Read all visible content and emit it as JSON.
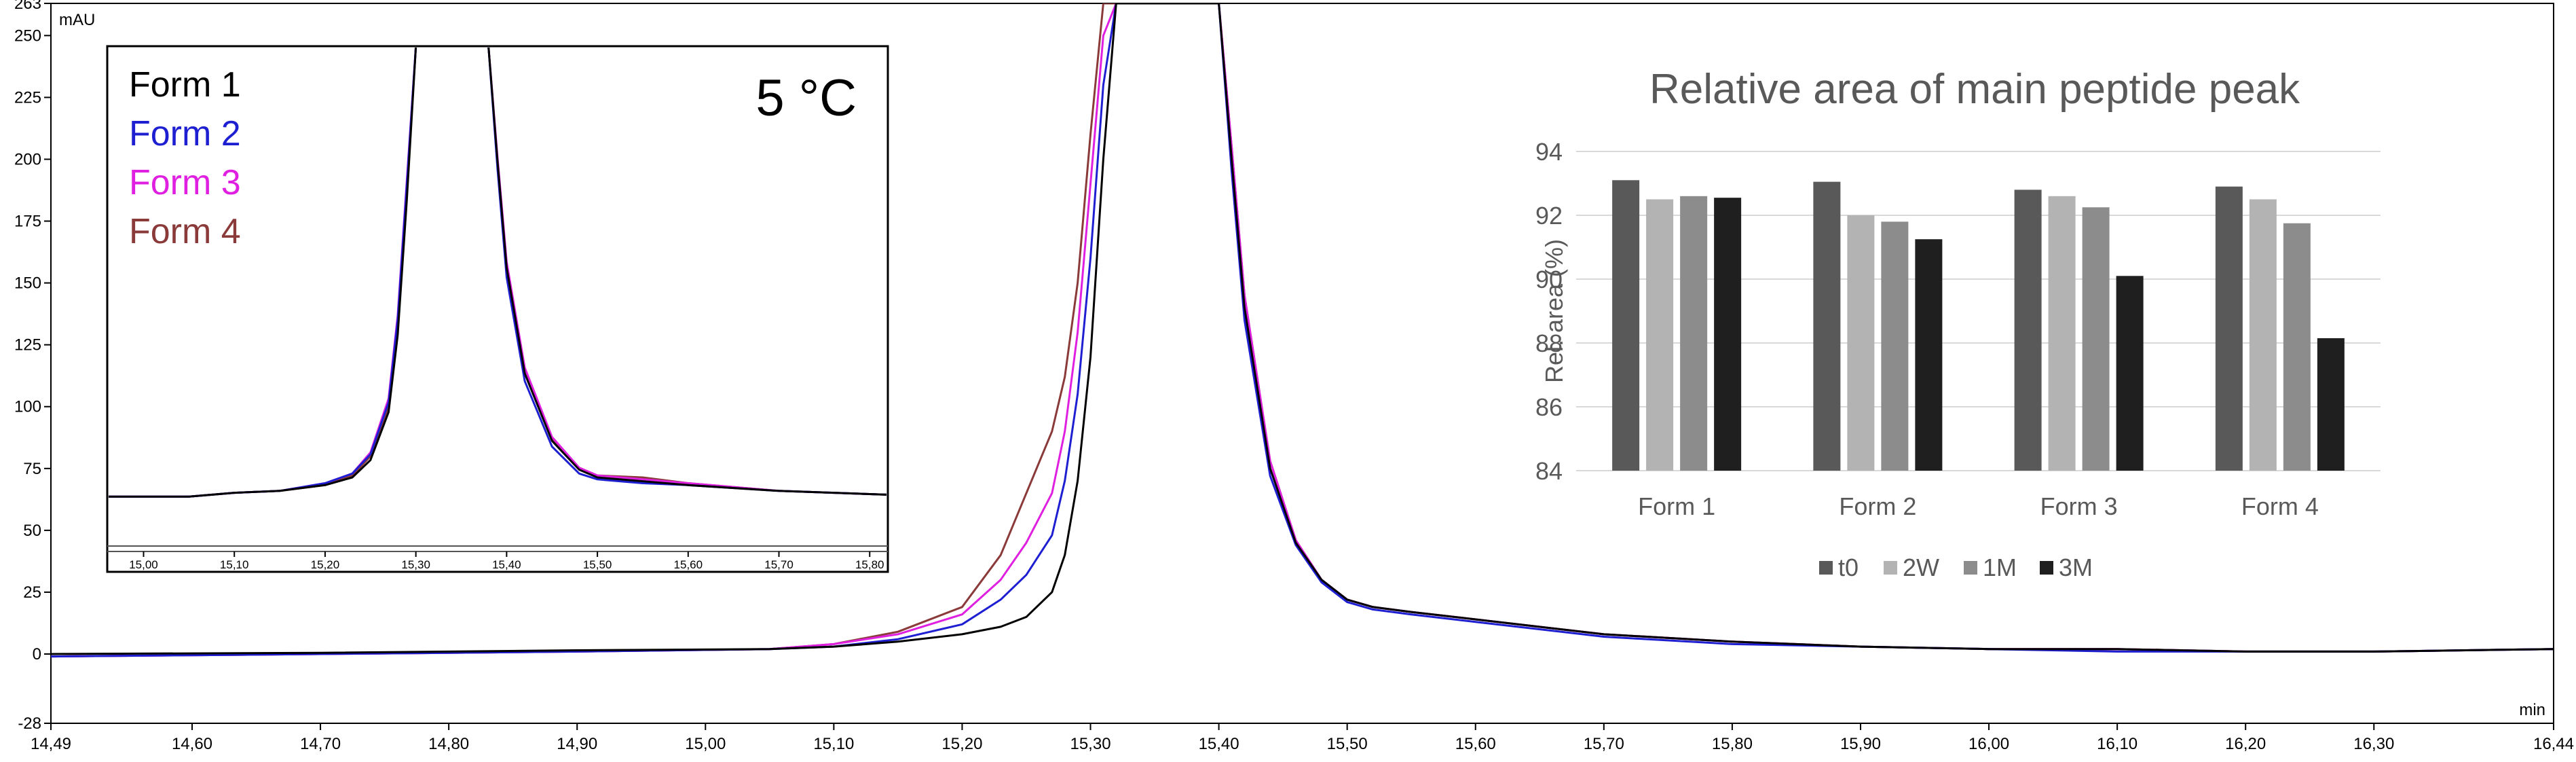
{
  "chart_data": [
    {
      "type": "line",
      "id": "main-chromatogram",
      "ylabel": "mAU",
      "xlabel": "min",
      "xlim": [
        14.49,
        16.44
      ],
      "ylim": [
        -28,
        263
      ],
      "x_ticks": [
        {
          "value": 14.49,
          "label": "14,49"
        },
        {
          "value": 14.6,
          "label": "14,60"
        },
        {
          "value": 14.7,
          "label": "14,70"
        },
        {
          "value": 14.8,
          "label": "14,80"
        },
        {
          "value": 14.9,
          "label": "14,90"
        },
        {
          "value": 15.0,
          "label": "15,00"
        },
        {
          "value": 15.1,
          "label": "15,10"
        },
        {
          "value": 15.2,
          "label": "15,20"
        },
        {
          "value": 15.3,
          "label": "15,30"
        },
        {
          "value": 15.4,
          "label": "15,40"
        },
        {
          "value": 15.5,
          "label": "15,50"
        },
        {
          "value": 15.6,
          "label": "15,60"
        },
        {
          "value": 15.7,
          "label": "15,70"
        },
        {
          "value": 15.8,
          "label": "15,80"
        },
        {
          "value": 15.9,
          "label": "15,90"
        },
        {
          "value": 16.0,
          "label": "16,00"
        },
        {
          "value": 16.1,
          "label": "16,10"
        },
        {
          "value": 16.2,
          "label": "16,20"
        },
        {
          "value": 16.3,
          "label": "16,30"
        },
        {
          "value": 16.44,
          "label": "16,44"
        }
      ],
      "y_ticks": [
        {
          "value": 263,
          "label": "263"
        },
        {
          "value": 250,
          "label": "250"
        },
        {
          "value": 225,
          "label": "225"
        },
        {
          "value": 200,
          "label": "200"
        },
        {
          "value": 175,
          "label": "175"
        },
        {
          "value": 150,
          "label": "150"
        },
        {
          "value": 125,
          "label": "125"
        },
        {
          "value": 100,
          "label": "100"
        },
        {
          "value": 75,
          "label": "75"
        },
        {
          "value": 50,
          "label": "50"
        },
        {
          "value": 25,
          "label": "25"
        },
        {
          "value": 0,
          "label": "0"
        },
        {
          "value": -28,
          "label": "-28"
        }
      ],
      "series": [
        {
          "name": "Form 1",
          "color": "#000000",
          "x": [
            14.49,
            14.7,
            14.9,
            15.05,
            15.1,
            15.15,
            15.2,
            15.23,
            15.25,
            15.27,
            15.28,
            15.29,
            15.3,
            15.31,
            15.32,
            15.33,
            15.34,
            15.35,
            15.36,
            15.37,
            15.38,
            15.39,
            15.4,
            15.41,
            15.42,
            15.44,
            15.46,
            15.48,
            15.5,
            15.52,
            15.55,
            15.6,
            15.7,
            15.8,
            15.9,
            16.0,
            16.1,
            16.2,
            16.3,
            16.44
          ],
          "y": [
            0,
            0.5,
            1.5,
            2,
            3,
            5,
            8,
            11,
            15,
            25,
            40,
            70,
            120,
            200,
            263,
            263,
            263,
            263,
            263,
            263,
            263,
            263,
            263,
            200,
            140,
            75,
            45,
            30,
            22,
            19,
            17,
            14,
            8,
            5,
            3,
            2,
            2,
            1,
            1,
            2
          ]
        },
        {
          "name": "Form 2",
          "color": "#1f1fd2",
          "x": [
            14.49,
            14.7,
            14.9,
            15.05,
            15.1,
            15.15,
            15.2,
            15.23,
            15.25,
            15.27,
            15.28,
            15.29,
            15.3,
            15.31,
            15.32,
            15.33,
            15.34,
            15.35,
            15.36,
            15.37,
            15.38,
            15.39,
            15.4,
            15.41,
            15.42,
            15.44,
            15.46,
            15.48,
            15.5,
            15.52,
            15.55,
            15.6,
            15.7,
            15.8,
            15.9,
            16.0,
            16.1,
            16.2,
            16.3,
            16.44
          ],
          "y": [
            -1,
            0,
            1,
            2,
            3,
            6,
            12,
            22,
            32,
            48,
            70,
            105,
            160,
            230,
            263,
            263,
            263,
            263,
            263,
            263,
            263,
            263,
            263,
            195,
            135,
            72,
            44,
            29,
            21,
            18,
            16,
            13,
            7,
            4,
            3,
            2,
            1,
            1,
            1,
            2
          ]
        },
        {
          "name": "Form 3",
          "color": "#e020e0",
          "x": [
            14.49,
            14.7,
            14.9,
            15.05,
            15.1,
            15.15,
            15.2,
            15.23,
            15.25,
            15.27,
            15.28,
            15.29,
            15.3,
            15.31,
            15.32,
            15.33,
            15.34,
            15.35,
            15.36,
            15.37,
            15.38,
            15.39,
            15.4,
            15.41,
            15.42,
            15.44,
            15.46,
            15.48,
            15.5,
            15.52,
            15.55,
            15.6,
            15.7,
            15.8,
            15.9,
            16.0,
            16.1,
            16.2,
            16.3,
            16.44
          ],
          "y": [
            -1,
            0,
            1,
            2,
            4,
            8,
            16,
            30,
            45,
            65,
            90,
            130,
            190,
            250,
            263,
            263,
            263,
            263,
            263,
            263,
            263,
            263,
            263,
            205,
            145,
            78,
            46,
            30,
            22,
            19,
            17,
            14,
            8,
            5,
            3,
            2,
            2,
            1,
            1,
            2
          ]
        },
        {
          "name": "Form 4",
          "color": "#8b3a3a",
          "x": [
            14.49,
            14.7,
            14.9,
            15.05,
            15.1,
            15.15,
            15.2,
            15.23,
            15.25,
            15.27,
            15.28,
            15.29,
            15.3,
            15.31,
            15.32,
            15.33,
            15.34,
            15.35,
            15.36,
            15.37,
            15.38,
            15.39,
            15.4,
            15.41,
            15.42,
            15.44,
            15.46,
            15.48,
            15.5,
            15.52,
            15.55,
            15.6,
            15.7,
            15.8,
            15.9,
            16.0,
            16.1,
            16.2,
            16.3,
            16.44
          ],
          "y": [
            -1,
            0,
            1,
            2,
            4,
            9,
            19,
            40,
            65,
            90,
            112,
            150,
            210,
            263,
            263,
            263,
            263,
            263,
            263,
            263,
            263,
            263,
            263,
            205,
            145,
            78,
            46,
            30,
            22,
            19,
            17,
            14,
            8,
            5,
            3,
            2,
            2,
            1,
            1,
            2
          ]
        }
      ]
    },
    {
      "type": "line",
      "id": "inset-chromatogram",
      "title": "5 °C",
      "xlim": [
        14.96,
        15.82
      ],
      "ylim": [
        40,
        300
      ],
      "x_ticks": [
        {
          "value": 15.0,
          "label": "15,00"
        },
        {
          "value": 15.1,
          "label": "15,10"
        },
        {
          "value": 15.2,
          "label": "15,20"
        },
        {
          "value": 15.3,
          "label": "15,30"
        },
        {
          "value": 15.4,
          "label": "15,40"
        },
        {
          "value": 15.5,
          "label": "15,50"
        },
        {
          "value": 15.6,
          "label": "15,60"
        },
        {
          "value": 15.7,
          "label": "15,70"
        },
        {
          "value": 15.8,
          "label": "15,80"
        }
      ],
      "legend": [
        {
          "name": "Form 1",
          "color": "#000000"
        },
        {
          "name": "Form 2",
          "color": "#1f1fd2"
        },
        {
          "name": "Form 3",
          "color": "#e020e0"
        },
        {
          "name": "Form 4",
          "color": "#8b3a3a"
        }
      ],
      "series": [
        {
          "name": "Form 1",
          "color": "#000000",
          "x": [
            14.96,
            15.05,
            15.1,
            15.15,
            15.2,
            15.23,
            15.25,
            15.27,
            15.28,
            15.29,
            15.3,
            15.31,
            15.37,
            15.38,
            15.39,
            15.4,
            15.42,
            15.45,
            15.48,
            15.5,
            15.55,
            15.6,
            15.7,
            15.82
          ],
          "y": [
            66,
            66,
            68,
            69,
            72,
            76,
            85,
            110,
            150,
            220,
            300,
            300,
            300,
            300,
            240,
            185,
            130,
            95,
            80,
            76,
            74,
            72,
            69,
            67
          ]
        },
        {
          "name": "Form 2",
          "color": "#1f1fd2",
          "x": [
            14.96,
            15.05,
            15.1,
            15.15,
            15.2,
            15.23,
            15.25,
            15.27,
            15.28,
            15.29,
            15.3,
            15.31,
            15.37,
            15.38,
            15.39,
            15.4,
            15.42,
            15.45,
            15.48,
            15.5,
            15.55,
            15.6,
            15.7,
            15.82
          ],
          "y": [
            66,
            66,
            68,
            69,
            73,
            78,
            88,
            115,
            158,
            228,
            300,
            300,
            300,
            300,
            236,
            180,
            126,
            92,
            78,
            75,
            73,
            72,
            69,
            67
          ]
        },
        {
          "name": "Form 3",
          "color": "#e020e0",
          "x": [
            14.96,
            15.05,
            15.1,
            15.15,
            15.2,
            15.23,
            15.25,
            15.27,
            15.28,
            15.29,
            15.3,
            15.31,
            15.37,
            15.38,
            15.39,
            15.4,
            15.42,
            15.45,
            15.48,
            15.5,
            15.55,
            15.6,
            15.7,
            15.82
          ],
          "y": [
            66,
            66,
            68,
            69,
            73,
            78,
            89,
            117,
            160,
            230,
            300,
            300,
            300,
            300,
            242,
            188,
            133,
            97,
            81,
            77,
            75,
            73,
            69,
            67
          ]
        },
        {
          "name": "Form 4",
          "color": "#8b3a3a",
          "x": [
            14.96,
            15.05,
            15.1,
            15.15,
            15.2,
            15.23,
            15.25,
            15.27,
            15.28,
            15.29,
            15.3,
            15.31,
            15.37,
            15.38,
            15.39,
            15.4,
            15.42,
            15.45,
            15.48,
            15.5,
            15.55,
            15.6,
            15.7,
            15.82
          ],
          "y": [
            66,
            66,
            68,
            69,
            72,
            77,
            87,
            113,
            155,
            225,
            300,
            300,
            300,
            300,
            240,
            186,
            131,
            96,
            81,
            77,
            76,
            73,
            69,
            67
          ]
        }
      ]
    },
    {
      "type": "bar",
      "id": "relative-area-bars",
      "title": "Relative area of main peptide peak",
      "ylabel": "Rel. area (%)",
      "xlabel": "",
      "ylim": [
        84,
        94
      ],
      "y_ticks": [
        84,
        86,
        88,
        90,
        92,
        94
      ],
      "grid": true,
      "legend_position": "bottom",
      "categories": [
        "Form 1",
        "Form 2",
        "Form 3",
        "Form 4"
      ],
      "series": [
        {
          "name": "t0",
          "color": "#595959",
          "values": [
            93.1,
            93.05,
            92.8,
            92.9
          ]
        },
        {
          "name": "2W",
          "color": "#b3b3b3",
          "values": [
            92.5,
            92.0,
            92.6,
            92.5
          ]
        },
        {
          "name": "1M",
          "color": "#8c8c8c",
          "values": [
            92.6,
            91.8,
            92.25,
            91.75
          ]
        },
        {
          "name": "3M",
          "color": "#1f1f1f",
          "values": [
            92.55,
            91.25,
            90.1,
            88.15
          ]
        }
      ]
    }
  ]
}
